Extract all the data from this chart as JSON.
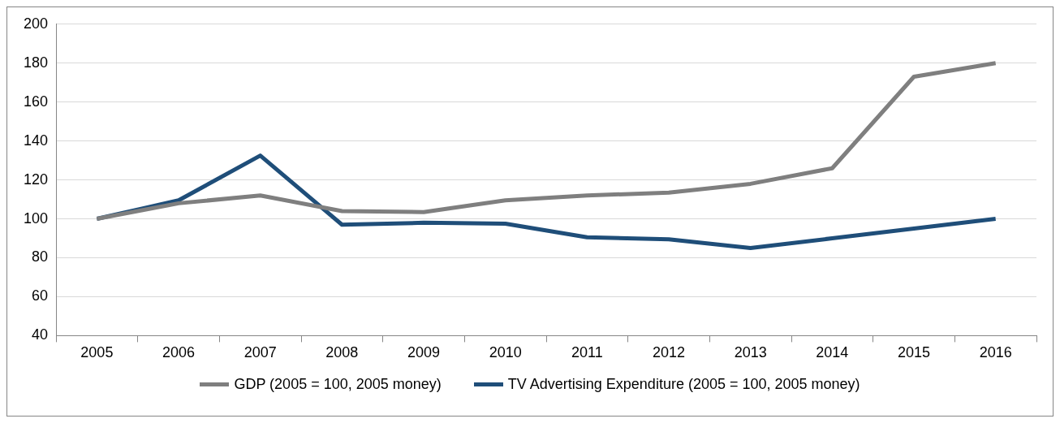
{
  "chart_data": {
    "type": "line",
    "categories": [
      "2005",
      "2006",
      "2007",
      "2008",
      "2009",
      "2010",
      "2011",
      "2012",
      "2013",
      "2014",
      "2015",
      "2016"
    ],
    "series": [
      {
        "name": "GDP (2005 = 100, 2005 money)",
        "color": "#7f7f7f",
        "values": [
          100,
          108,
          112,
          104,
          103.5,
          109.5,
          112,
          113.5,
          118,
          126,
          173,
          180
        ]
      },
      {
        "name": "TV Advertising Expenditure (2005 = 100, 2005 money)",
        "color": "#1f4e79",
        "values": [
          100,
          109.5,
          132.5,
          97,
          98,
          97.5,
          90.5,
          89.5,
          85,
          90,
          95,
          100
        ]
      }
    ],
    "ylim": [
      40,
      200
    ],
    "yticks": [
      40,
      60,
      80,
      100,
      120,
      140,
      160,
      180,
      200
    ],
    "grid": "y",
    "legend": "bottom",
    "marker": "none",
    "line_style": "solid"
  }
}
